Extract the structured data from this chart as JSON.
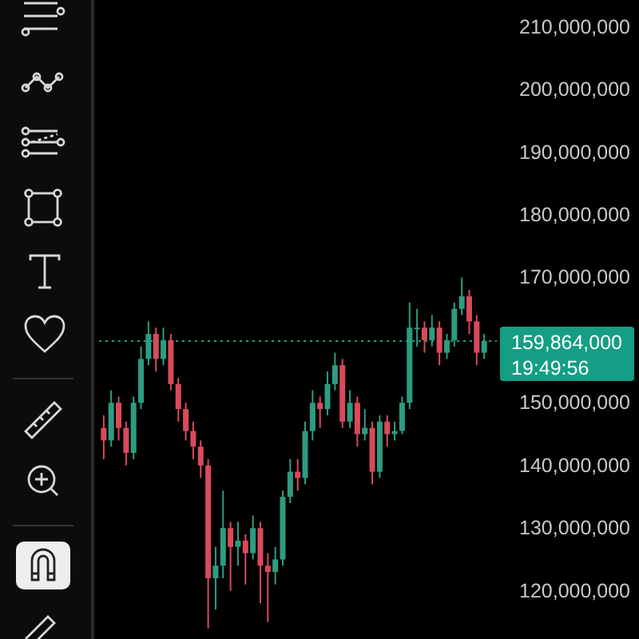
{
  "chart_data": {
    "type": "candlestick",
    "categories": [
      null,
      null,
      null,
      null,
      null,
      null,
      null,
      null,
      null,
      null,
      null,
      null,
      null,
      null,
      null,
      null,
      null,
      null,
      null,
      null,
      null,
      null,
      null,
      null,
      null,
      null,
      null,
      null,
      null,
      null,
      null,
      null,
      null,
      null,
      null,
      null,
      null,
      null,
      null,
      null,
      null,
      null,
      null,
      null,
      null,
      null,
      null,
      null,
      null,
      null,
      null,
      null
    ],
    "ohlc": [
      [
        146000000,
        148000000,
        141000000,
        144000000
      ],
      [
        144000000,
        152000000,
        143000000,
        150000000
      ],
      [
        150000000,
        151000000,
        144000000,
        146000000
      ],
      [
        146000000,
        147000000,
        140000000,
        142000000
      ],
      [
        142000000,
        151000000,
        141000000,
        150000000
      ],
      [
        150000000,
        159000000,
        149000000,
        157000000
      ],
      [
        157000000,
        163000000,
        156000000,
        161000000
      ],
      [
        161000000,
        162000000,
        155000000,
        157000000
      ],
      [
        157000000,
        162000000,
        156000000,
        160000000
      ],
      [
        160000000,
        161000000,
        152000000,
        153000000
      ],
      [
        153000000,
        154000000,
        147000000,
        149000000
      ],
      [
        149000000,
        150000000,
        144000000,
        145500000
      ],
      [
        145500000,
        147000000,
        141000000,
        143000000
      ],
      [
        143000000,
        144000000,
        138000000,
        140000000
      ],
      [
        140000000,
        141000000,
        114000000,
        122000000
      ],
      [
        122000000,
        127000000,
        117000000,
        124000000
      ],
      [
        124000000,
        136000000,
        122000000,
        130000000
      ],
      [
        130000000,
        131000000,
        120000000,
        127000000
      ],
      [
        127000000,
        131000000,
        124000000,
        128000000
      ],
      [
        128000000,
        129000000,
        121000000,
        126000000
      ],
      [
        126000000,
        132000000,
        125000000,
        130000000
      ],
      [
        130000000,
        131000000,
        118000000,
        124000000
      ],
      [
        124000000,
        126000000,
        115000000,
        123000000
      ],
      [
        123000000,
        127000000,
        121000000,
        125000000
      ],
      [
        125000000,
        136000000,
        124000000,
        135000000
      ],
      [
        135000000,
        141000000,
        134000000,
        139000000
      ],
      [
        139000000,
        141000000,
        136000000,
        138000000
      ],
      [
        138000000,
        147000000,
        137000000,
        145500000
      ],
      [
        145500000,
        152000000,
        144000000,
        150000000
      ],
      [
        150000000,
        151000000,
        146000000,
        149000000
      ],
      [
        149000000,
        155000000,
        148000000,
        153000000
      ],
      [
        153000000,
        158000000,
        152000000,
        156000000
      ],
      [
        156000000,
        157000000,
        146000000,
        147000000
      ],
      [
        147000000,
        152000000,
        146000000,
        150000000
      ],
      [
        150000000,
        151000000,
        143000000,
        145000000
      ],
      [
        145000000,
        149000000,
        144000000,
        146000000
      ],
      [
        146000000,
        147000000,
        137000000,
        139000000
      ],
      [
        139000000,
        148000000,
        138000000,
        147000000
      ],
      [
        147000000,
        148000000,
        143000000,
        145000000
      ],
      [
        145000000,
        147000000,
        144000000,
        145500000
      ],
      [
        145500000,
        151000000,
        145000000,
        150000000
      ],
      [
        150000000,
        166000000,
        149000000,
        162000000
      ],
      [
        162000000,
        165000000,
        159000000,
        162000000
      ],
      [
        162000000,
        163000000,
        158000000,
        160000000
      ],
      [
        160000000,
        164000000,
        159000000,
        162000000
      ],
      [
        162000000,
        163000000,
        156000000,
        158000000
      ],
      [
        158000000,
        161000000,
        157000000,
        160000000
      ],
      [
        160000000,
        166000000,
        159000000,
        165000000
      ],
      [
        165000000,
        170000000,
        164000000,
        167000000
      ],
      [
        167000000,
        168000000,
        161000000,
        163000000
      ],
      [
        163000000,
        164000000,
        156000000,
        158000000
      ],
      [
        158000000,
        161000000,
        157000000,
        159864000
      ]
    ],
    "ylim": [
      112300000,
      214300000
    ],
    "yticks": [
      {
        "value": 120000000,
        "label": "120,000,000"
      },
      {
        "value": 130000000,
        "label": "130,000,000"
      },
      {
        "value": 140000000,
        "label": "140,000,000"
      },
      {
        "value": 150000000,
        "label": "150,000,000"
      },
      {
        "value": 160000000,
        "label": null
      },
      {
        "value": 170000000,
        "label": "170,000,000"
      },
      {
        "value": 180000000,
        "label": "180,000,000"
      },
      {
        "value": 190000000,
        "label": "190,000,000"
      },
      {
        "value": 200000000,
        "label": "200,000,000"
      },
      {
        "value": 210000000,
        "label": "210,000,000"
      }
    ],
    "tick_labels": "y",
    "ref_lines": [
      {
        "axis": "y",
        "value": 159864000,
        "label": "159,864,000",
        "color": "#159e85",
        "line_style": "dotted"
      }
    ],
    "annotations": [
      "19:49:56"
    ]
  }
}
